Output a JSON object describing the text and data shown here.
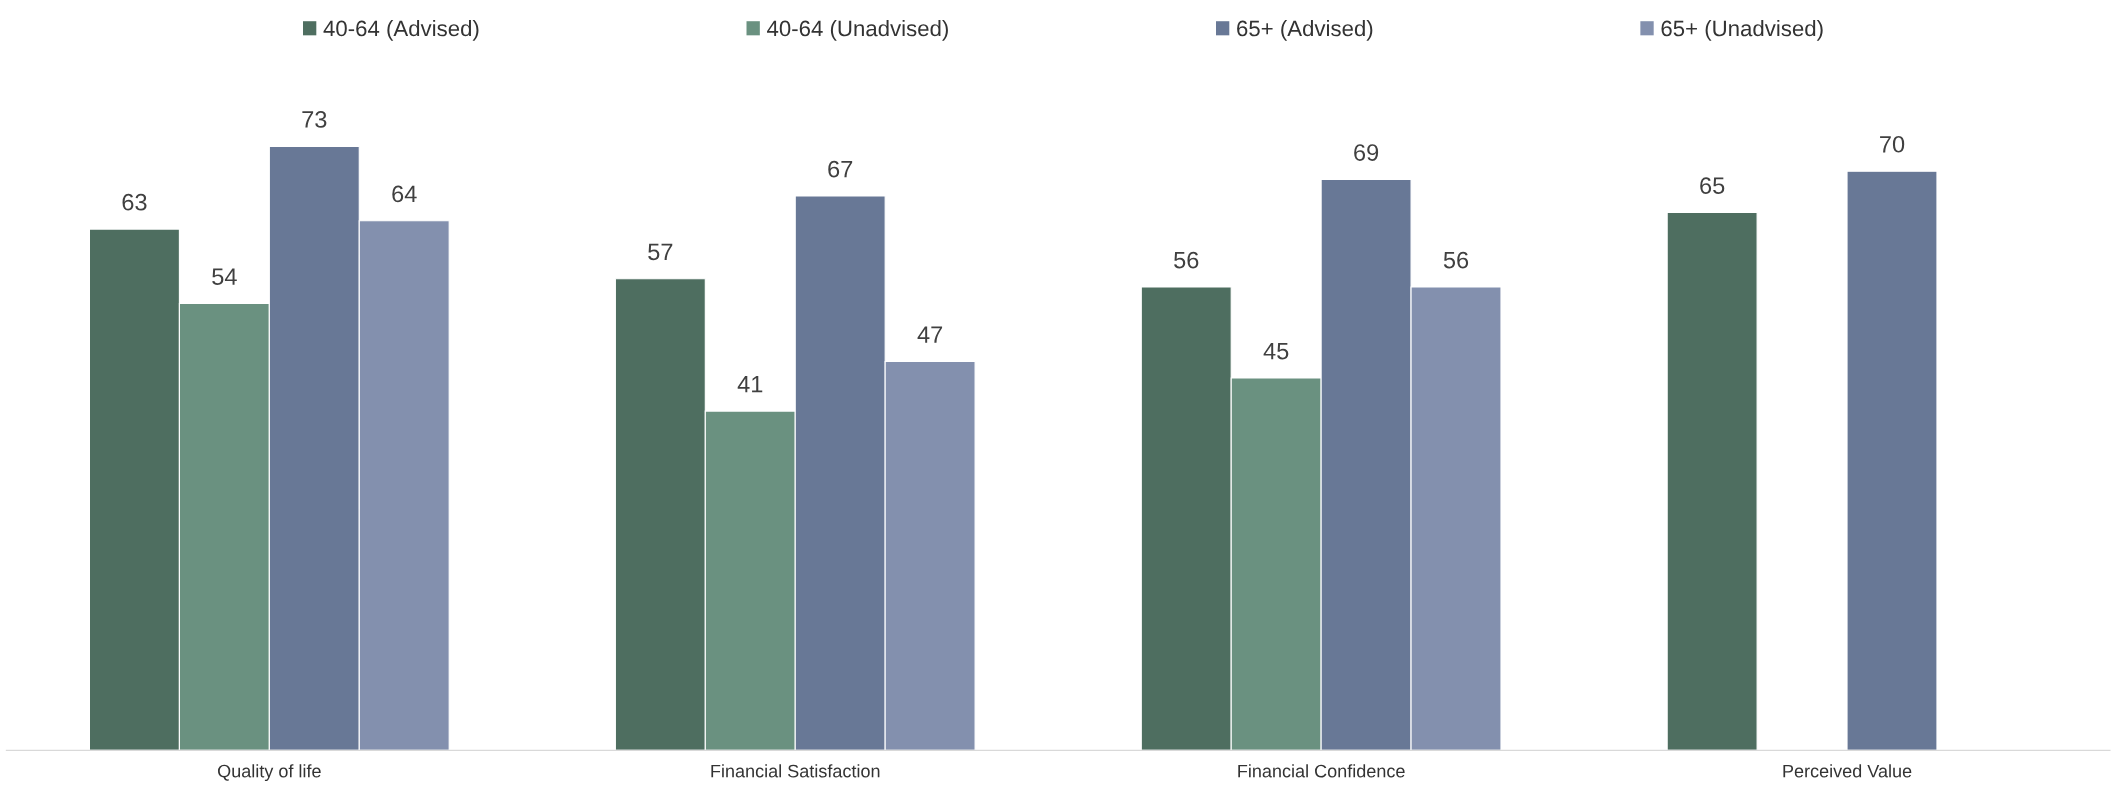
{
  "chart_data": {
    "type": "bar",
    "categories": [
      "Quality of life",
      "Financial Satisfaction",
      "Financial Confidence",
      "Perceived Value"
    ],
    "series": [
      {
        "name": "40-64 (Advised)",
        "color": "#4e6e60",
        "values": [
          63,
          57,
          56,
          65
        ]
      },
      {
        "name": "40-64 (Unadvised)",
        "color": "#6a9180",
        "values": [
          54,
          41,
          45,
          null
        ]
      },
      {
        "name": "65+ (Advised)",
        "color": "#687896",
        "values": [
          73,
          67,
          69,
          70
        ]
      },
      {
        "name": "65+ (Unadvised)",
        "color": "#8390ae",
        "values": [
          64,
          47,
          56,
          null
        ]
      }
    ],
    "data_labels": true,
    "legend": "top",
    "grid": false
  }
}
